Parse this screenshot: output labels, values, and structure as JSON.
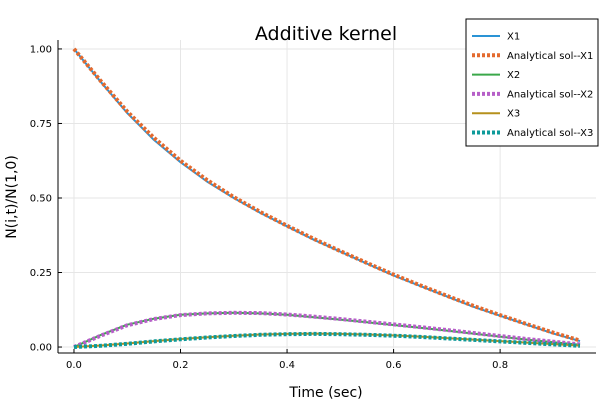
{
  "chart_data": {
    "type": "line",
    "title": "Additive kernel",
    "xlabel": "Time (sec)",
    "ylabel": "N(i,t)/N(1,0)",
    "xlim": [
      -0.03,
      0.98
    ],
    "ylim": [
      -0.02,
      1.03
    ],
    "xticks": [
      0.0,
      0.2,
      0.4,
      0.6,
      0.8
    ],
    "xtick_labels": [
      "0.0",
      "0.2",
      "0.4",
      "0.6",
      "0.8"
    ],
    "yticks": [
      0.0,
      0.25,
      0.5,
      0.75,
      1.0
    ],
    "ytick_labels": [
      "0.00",
      "0.25",
      "0.50",
      "0.75",
      "1.00"
    ],
    "grid": true,
    "legend_position": "top-right",
    "x": [
      0.0,
      0.05,
      0.1,
      0.15,
      0.2,
      0.25,
      0.3,
      0.35,
      0.4,
      0.45,
      0.5,
      0.55,
      0.6,
      0.65,
      0.7,
      0.75,
      0.8,
      0.85,
      0.9,
      0.95
    ],
    "series": [
      {
        "name": "X1",
        "color": "#2a93d5",
        "dash": "solid",
        "values": [
          1.0,
          0.89,
          0.785,
          0.695,
          0.62,
          0.555,
          0.5,
          0.45,
          0.405,
          0.36,
          0.32,
          0.28,
          0.24,
          0.205,
          0.17,
          0.135,
          0.105,
          0.075,
          0.045,
          0.02
        ]
      },
      {
        "name": "Analytical sol--X1",
        "color": "#e36a2f",
        "dash": "dotted",
        "values": [
          1.0,
          0.893,
          0.79,
          0.702,
          0.625,
          0.56,
          0.503,
          0.453,
          0.407,
          0.363,
          0.322,
          0.282,
          0.243,
          0.207,
          0.172,
          0.138,
          0.107,
          0.077,
          0.048,
          0.022
        ]
      },
      {
        "name": "X2",
        "color": "#3aa84a",
        "dash": "solid",
        "values": [
          0.0,
          0.04,
          0.075,
          0.095,
          0.108,
          0.113,
          0.115,
          0.113,
          0.108,
          0.1,
          0.092,
          0.083,
          0.074,
          0.065,
          0.055,
          0.045,
          0.035,
          0.025,
          0.016,
          0.008
        ]
      },
      {
        "name": "Analytical sol--X2",
        "color": "#b660c8",
        "dash": "dotted",
        "values": [
          0.0,
          0.038,
          0.073,
          0.094,
          0.107,
          0.113,
          0.115,
          0.114,
          0.109,
          0.102,
          0.094,
          0.085,
          0.076,
          0.067,
          0.057,
          0.047,
          0.037,
          0.027,
          0.018,
          0.009
        ]
      },
      {
        "name": "X3",
        "color": "#b5901c",
        "dash": "solid",
        "values": [
          0.0,
          0.005,
          0.012,
          0.02,
          0.027,
          0.033,
          0.038,
          0.042,
          0.044,
          0.045,
          0.044,
          0.042,
          0.039,
          0.035,
          0.03,
          0.025,
          0.02,
          0.015,
          0.01,
          0.005
        ]
      },
      {
        "name": "Analytical sol--X3",
        "color": "#0e9a9a",
        "dash": "dotted",
        "values": [
          0.0,
          0.004,
          0.011,
          0.019,
          0.026,
          0.032,
          0.037,
          0.041,
          0.043,
          0.044,
          0.043,
          0.041,
          0.038,
          0.034,
          0.029,
          0.024,
          0.019,
          0.014,
          0.009,
          0.004
        ]
      }
    ]
  }
}
